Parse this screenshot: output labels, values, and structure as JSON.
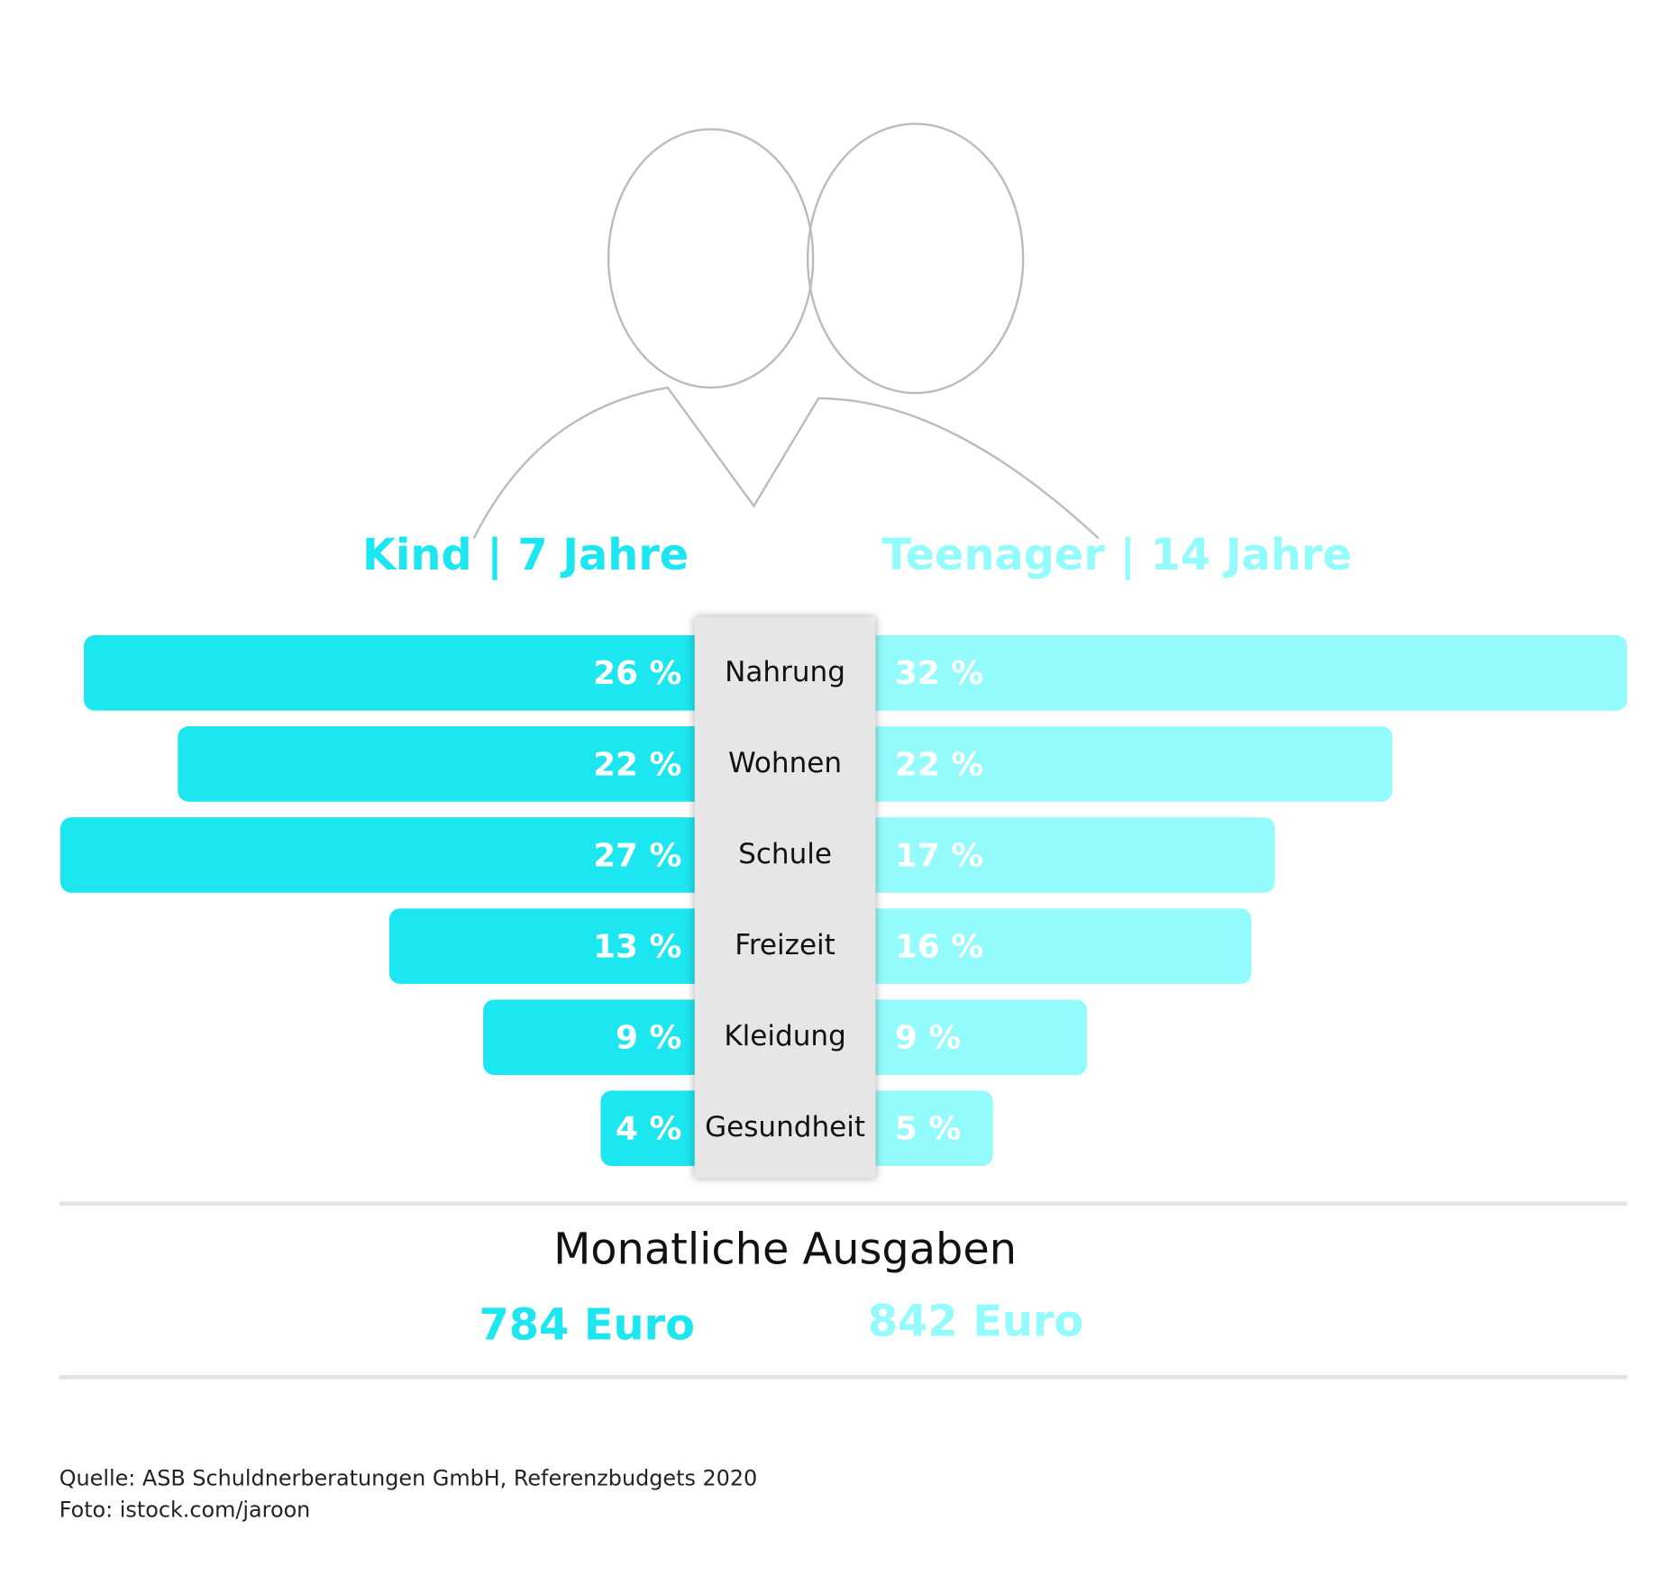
{
  "chart_data": {
    "type": "butterfly-bar",
    "categories": [
      "Nahrung",
      "Wohnen",
      "Schule",
      "Freizeit",
      "Kleidung",
      "Gesundheit"
    ],
    "series": [
      {
        "name": "Kind | 7 Jahre",
        "color": "#1ce6ef",
        "values": [
          26,
          22,
          27,
          13,
          9,
          4
        ],
        "value_labels": [
          "26 %",
          "22 %",
          "27 %",
          "13 %",
          "9 %",
          "4 %"
        ]
      },
      {
        "name": "Teenager | 14 Jahre",
        "color": "#94fbfd",
        "values": [
          32,
          22,
          17,
          16,
          9,
          5
        ],
        "value_labels": [
          "32 %",
          "22 %",
          "17 %",
          "16 %",
          "9 %",
          "5 %"
        ]
      }
    ],
    "subtitle": "Monatliche Ausgaben",
    "totals": [
      "784 Euro",
      "842 Euro"
    ],
    "notes": [
      "Quelle: ASB Schuldnerberatungen GmbH, Referenzbudgets 2020",
      "Foto: istock.com/jaroon"
    ]
  }
}
